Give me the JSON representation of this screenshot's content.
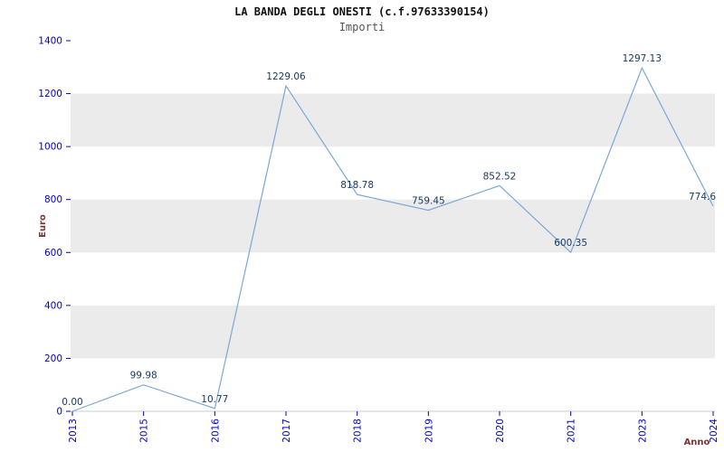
{
  "header": {
    "title": "LA BANDA DEGLI ONESTI (c.f.97633390154)",
    "subtitle": "Importi"
  },
  "chart_data": {
    "type": "line",
    "title": "LA BANDA DEGLI ONESTI (c.f.97633390154)",
    "subtitle": "Importi",
    "xlabel": "Anno",
    "ylabel": "Euro",
    "categories": [
      "2013",
      "2015",
      "2016",
      "2017",
      "2018",
      "2019",
      "2020",
      "2021",
      "2023",
      "2024"
    ],
    "values": [
      0.0,
      99.98,
      10.77,
      1229.06,
      818.78,
      759.45,
      852.52,
      600.35,
      1297.13,
      774.6
    ],
    "point_labels": [
      "0.00",
      "99.98",
      "10.77",
      "1229.06",
      "818.78",
      "759.45",
      "852.52",
      "600.35",
      "1297.13",
      "774.6"
    ],
    "ylim": [
      0,
      1400
    ],
    "ytick_step": 200,
    "yticks": [
      "0",
      "200",
      "400",
      "600",
      "800",
      "1000",
      "1200",
      "1400"
    ],
    "grid": false,
    "legend": "none",
    "band_style": "alternating horizontal stripes every 200 units",
    "colors": {
      "line": "#7da7d9",
      "tick_labels": "#0000cc",
      "axis_labels": "#803333",
      "point_labels": "#1b3a63",
      "band": "#ebebeb",
      "background": "#ffffff",
      "title": "#111111",
      "subtitle": "#555555",
      "axis_line": "#cccccc"
    }
  }
}
